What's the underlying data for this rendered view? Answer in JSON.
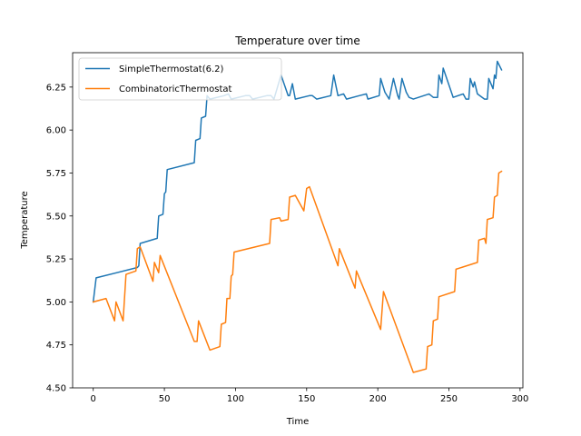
{
  "chart_data": {
    "type": "line",
    "title": "Temperature over time",
    "xlabel": "Time",
    "ylabel": "Temperature",
    "xlim": [
      -14.5,
      302
    ],
    "ylim": [
      4.5,
      6.45
    ],
    "xticks": [
      0,
      50,
      100,
      150,
      200,
      250,
      300
    ],
    "xtick_labels": [
      "0",
      "50",
      "100",
      "150",
      "200",
      "250",
      "300"
    ],
    "yticks": [
      4.5,
      4.75,
      5.0,
      5.25,
      5.5,
      5.75,
      6.0,
      6.25
    ],
    "ytick_labels": [
      "4.50",
      "4.75",
      "5.00",
      "5.25",
      "5.50",
      "5.75",
      "6.00",
      "6.25"
    ],
    "grid": false,
    "legend_position": "top-left",
    "series": [
      {
        "name": "SimpleThermostat(6.2)",
        "color": "#1f77b4",
        "points": [
          [
            0,
            5.0
          ],
          [
            2,
            5.14
          ],
          [
            31,
            5.2
          ],
          [
            32,
            5.21
          ],
          [
            33,
            5.34
          ],
          [
            45,
            5.37
          ],
          [
            46,
            5.5
          ],
          [
            49,
            5.51
          ],
          [
            50,
            5.63
          ],
          [
            51,
            5.64
          ],
          [
            52,
            5.77
          ],
          [
            71,
            5.81
          ],
          [
            72,
            5.94
          ],
          [
            75,
            5.95
          ],
          [
            76,
            6.07
          ],
          [
            79,
            6.08
          ],
          [
            80,
            6.2
          ],
          [
            82,
            6.18
          ],
          [
            92,
            6.2
          ],
          [
            95,
            6.21
          ],
          [
            97,
            6.18
          ],
          [
            107,
            6.2
          ],
          [
            110,
            6.2
          ],
          [
            112,
            6.18
          ],
          [
            122,
            6.2
          ],
          [
            125,
            6.2
          ],
          [
            127,
            6.18
          ],
          [
            132,
            6.32
          ],
          [
            137,
            6.2
          ],
          [
            138,
            6.2
          ],
          [
            140,
            6.27
          ],
          [
            142,
            6.18
          ],
          [
            152,
            6.2
          ],
          [
            154,
            6.2
          ],
          [
            157,
            6.18
          ],
          [
            167,
            6.2
          ],
          [
            169,
            6.32
          ],
          [
            172,
            6.2
          ],
          [
            176,
            6.21
          ],
          [
            178,
            6.18
          ],
          [
            187,
            6.2
          ],
          [
            192,
            6.21
          ],
          [
            193,
            6.18
          ],
          [
            201,
            6.2
          ],
          [
            202,
            6.3
          ],
          [
            205,
            6.22
          ],
          [
            208,
            6.18
          ],
          [
            211,
            6.3
          ],
          [
            214,
            6.2
          ],
          [
            215,
            6.18
          ],
          [
            217,
            6.3
          ],
          [
            220,
            6.22
          ],
          [
            222,
            6.19
          ],
          [
            225,
            6.18
          ],
          [
            236,
            6.21
          ],
          [
            239,
            6.19
          ],
          [
            242,
            6.19
          ],
          [
            243,
            6.32
          ],
          [
            245,
            6.27
          ],
          [
            246,
            6.36
          ],
          [
            253,
            6.19
          ],
          [
            260,
            6.21
          ],
          [
            262,
            6.18
          ],
          [
            264,
            6.18
          ],
          [
            265,
            6.3
          ],
          [
            267,
            6.25
          ],
          [
            268,
            6.28
          ],
          [
            270,
            6.21
          ],
          [
            275,
            6.18
          ],
          [
            277,
            6.18
          ],
          [
            278,
            6.3
          ],
          [
            281,
            6.24
          ],
          [
            282,
            6.32
          ],
          [
            283,
            6.3
          ],
          [
            284,
            6.4
          ],
          [
            287,
            6.35
          ]
        ]
      },
      {
        "name": "CombinatoricThermostat",
        "color": "#ff7f0e",
        "points": [
          [
            0,
            5.0
          ],
          [
            9,
            5.02
          ],
          [
            15,
            4.89
          ],
          [
            16,
            5.0
          ],
          [
            21,
            4.89
          ],
          [
            23,
            5.16
          ],
          [
            30,
            5.18
          ],
          [
            31,
            5.31
          ],
          [
            33,
            5.32
          ],
          [
            42,
            5.12
          ],
          [
            43,
            5.23
          ],
          [
            46,
            5.17
          ],
          [
            47,
            5.27
          ],
          [
            71,
            4.77
          ],
          [
            73,
            4.77
          ],
          [
            74,
            4.89
          ],
          [
            82,
            4.72
          ],
          [
            89,
            4.74
          ],
          [
            90,
            4.87
          ],
          [
            93,
            4.88
          ],
          [
            94,
            5.02
          ],
          [
            96,
            5.02
          ],
          [
            97,
            5.15
          ],
          [
            98,
            5.16
          ],
          [
            99,
            5.29
          ],
          [
            124,
            5.34
          ],
          [
            125,
            5.48
          ],
          [
            131,
            5.49
          ],
          [
            132,
            5.47
          ],
          [
            137,
            5.48
          ],
          [
            138,
            5.61
          ],
          [
            142,
            5.62
          ],
          [
            148,
            5.53
          ],
          [
            150,
            5.66
          ],
          [
            152,
            5.67
          ],
          [
            172,
            5.21
          ],
          [
            173,
            5.31
          ],
          [
            184,
            5.08
          ],
          [
            185,
            5.18
          ],
          [
            202,
            4.84
          ],
          [
            204,
            5.06
          ],
          [
            225,
            4.59
          ],
          [
            234,
            4.61
          ],
          [
            235,
            4.74
          ],
          [
            238,
            4.75
          ],
          [
            239,
            4.89
          ],
          [
            242,
            4.9
          ],
          [
            243,
            5.03
          ],
          [
            254,
            5.06
          ],
          [
            255,
            5.19
          ],
          [
            270,
            5.23
          ],
          [
            271,
            5.36
          ],
          [
            275,
            5.37
          ],
          [
            276,
            5.34
          ],
          [
            277,
            5.48
          ],
          [
            281,
            5.49
          ],
          [
            282,
            5.61
          ],
          [
            284,
            5.62
          ],
          [
            285,
            5.75
          ],
          [
            287,
            5.76
          ]
        ]
      }
    ]
  }
}
